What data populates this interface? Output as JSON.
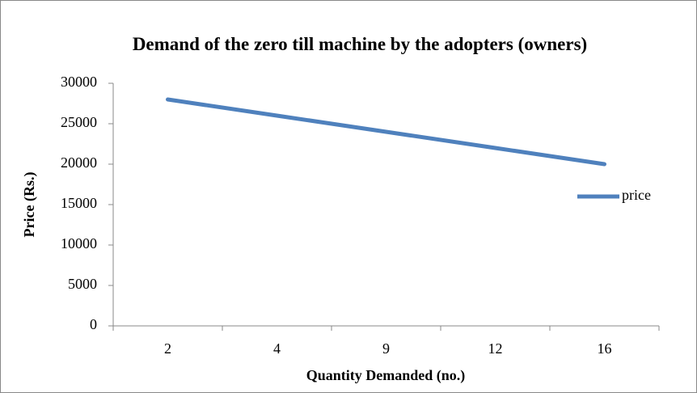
{
  "chart_data": {
    "type": "line",
    "title": "Demand of the zero till machine by the adopters (owners)",
    "x_label": "Quantity Demanded (no.)",
    "y_label": "Price (Rs.)",
    "categories": [
      "2",
      "4",
      "9",
      "12",
      "16"
    ],
    "series": [
      {
        "name": "price",
        "color": "#4f81bd",
        "values": [
          28000,
          26000,
          24000,
          22000,
          20000
        ]
      }
    ],
    "ylim": [
      0,
      30000
    ],
    "yticks": [
      0,
      5000,
      10000,
      15000,
      20000,
      25000,
      30000
    ],
    "grid": false,
    "legend": "right"
  }
}
